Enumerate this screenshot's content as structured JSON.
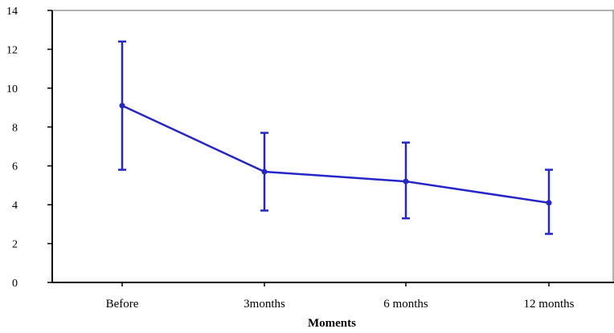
{
  "chart_data": {
    "type": "line",
    "categories": [
      "Before",
      "3months",
      "6 months",
      "12 months"
    ],
    "series": [
      {
        "values": [
          9.1,
          5.7,
          5.2,
          4.1
        ],
        "error_low": [
          5.8,
          3.7,
          3.3,
          2.5
        ],
        "error_high": [
          12.4,
          7.7,
          7.2,
          5.8
        ]
      }
    ],
    "title": "",
    "xlabel": "Moments",
    "ylabel": "",
    "ylim": [
      0,
      14
    ],
    "yticks": [
      "0",
      "2",
      "4",
      "6",
      "8",
      "10",
      "12",
      "14"
    ],
    "grid": false,
    "legend": "none",
    "colors": {
      "series": "#2626c8",
      "axis": "#000000",
      "frame": "#999999"
    }
  }
}
